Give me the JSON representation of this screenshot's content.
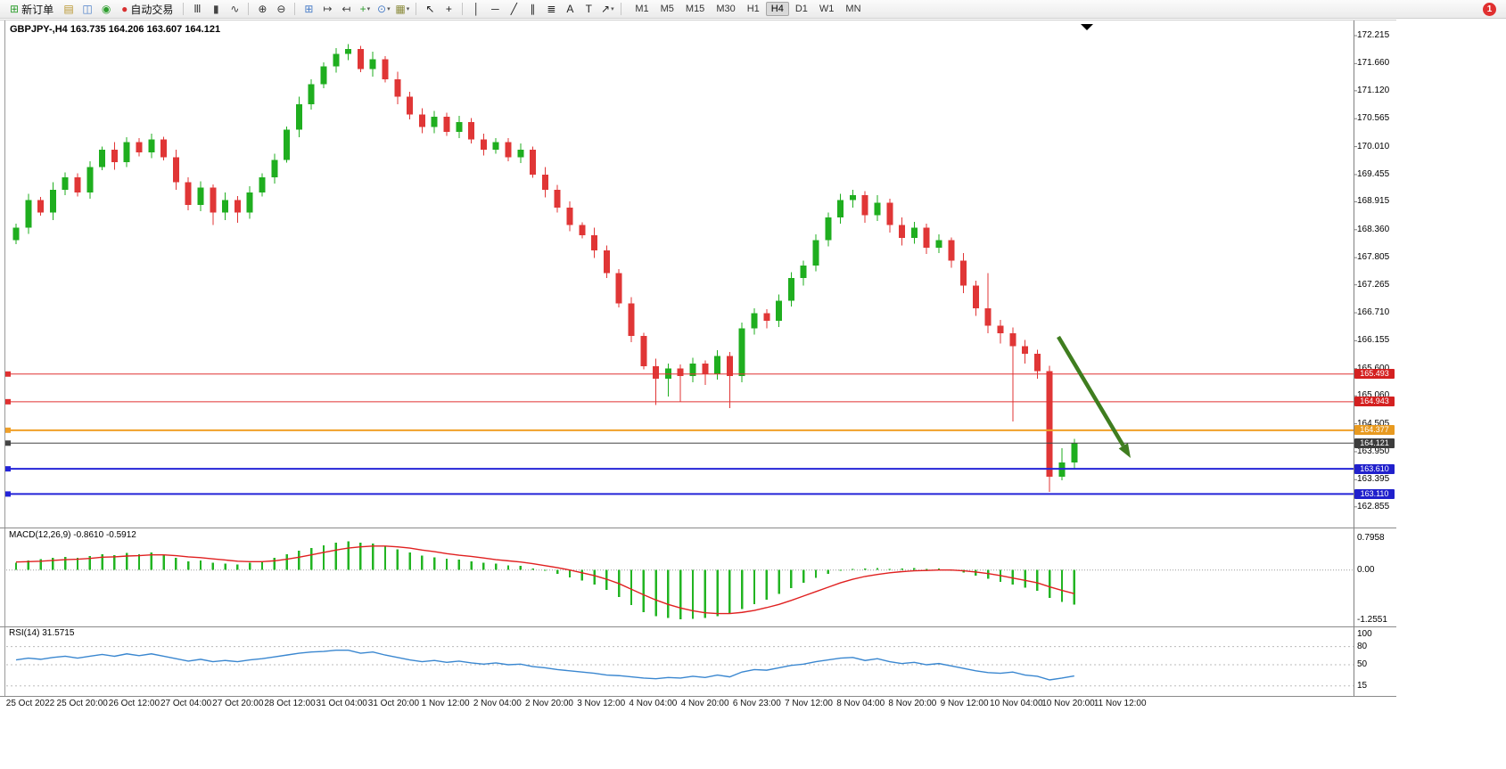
{
  "toolbar": {
    "items": [
      {
        "type": "button",
        "name": "new-order",
        "glyph": "⊞",
        "color": "#2e9e2e",
        "label": "新订单"
      },
      {
        "type": "icon",
        "name": "chart-window",
        "glyph": "▤",
        "color": "#b8952d"
      },
      {
        "type": "icon",
        "name": "market-watch",
        "glyph": "◫",
        "color": "#4a7ec8"
      },
      {
        "type": "icon",
        "name": "strategy-navigator",
        "glyph": "◉",
        "color": "#2e9e2e"
      },
      {
        "type": "button",
        "name": "auto-trading",
        "glyph": "●",
        "color": "#d83030",
        "label": "自动交易"
      },
      {
        "type": "sep"
      },
      {
        "type": "icon",
        "name": "bar-chart",
        "glyph": "Ⅲ",
        "color": "#444444"
      },
      {
        "type": "icon",
        "name": "candlestick-chart",
        "glyph": "▮",
        "color": "#444444"
      },
      {
        "type": "icon",
        "name": "line-chart",
        "glyph": "∿",
        "color": "#444444"
      },
      {
        "type": "sep"
      },
      {
        "type": "icon",
        "name": "zoom-in",
        "glyph": "⊕",
        "color": "#333333"
      },
      {
        "type": "icon",
        "name": "zoom-out",
        "glyph": "⊖",
        "color": "#333333"
      },
      {
        "type": "sep"
      },
      {
        "type": "icon",
        "name": "tile-windows",
        "glyph": "⊞",
        "color": "#4a7ec8"
      },
      {
        "type": "icon",
        "name": "auto-scroll",
        "glyph": "↦",
        "color": "#444444"
      },
      {
        "type": "icon",
        "name": "chart-shift",
        "glyph": "↤",
        "color": "#444444"
      },
      {
        "type": "icon",
        "name": "indicators",
        "glyph": "+",
        "color": "#2e9e2e",
        "caret": true
      },
      {
        "type": "icon",
        "name": "periods",
        "glyph": "⊙",
        "color": "#4a7ec8",
        "caret": true
      },
      {
        "type": "icon",
        "name": "templates",
        "glyph": "▦",
        "color": "#8a8a3a",
        "caret": true
      },
      {
        "type": "sep"
      },
      {
        "type": "icon",
        "name": "cursor",
        "glyph": "↖",
        "color": "#222222"
      },
      {
        "type": "icon",
        "name": "crosshair",
        "glyph": "+",
        "color": "#222222"
      },
      {
        "type": "sep"
      },
      {
        "type": "icon",
        "name": "vertical-line",
        "glyph": "│",
        "color": "#222222"
      },
      {
        "type": "icon",
        "name": "horizontal-line",
        "glyph": "─",
        "color": "#222222"
      },
      {
        "type": "icon",
        "name": "trendline",
        "glyph": "╱",
        "color": "#222222"
      },
      {
        "type": "icon",
        "name": "equidistant-channel",
        "glyph": "∥",
        "color": "#222222"
      },
      {
        "type": "icon",
        "name": "fibonacci",
        "glyph": "≣",
        "color": "#222222"
      },
      {
        "type": "icon",
        "name": "text",
        "glyph": "A",
        "color": "#222222"
      },
      {
        "type": "icon",
        "name": "text-label",
        "glyph": "T",
        "color": "#222222"
      },
      {
        "type": "icon",
        "name": "arrows",
        "glyph": "↗",
        "color": "#222222",
        "caret": true
      },
      {
        "type": "sep"
      }
    ],
    "timeframes": [
      {
        "label": "M1",
        "active": false
      },
      {
        "label": "M5",
        "active": false
      },
      {
        "label": "M15",
        "active": false
      },
      {
        "label": "M30",
        "active": false
      },
      {
        "label": "H1",
        "active": false
      },
      {
        "label": "H4",
        "active": true
      },
      {
        "label": "D1",
        "active": false
      },
      {
        "label": "W1",
        "active": false
      },
      {
        "label": "MN",
        "active": false
      }
    ],
    "notification_count": "1"
  },
  "chart": {
    "title": "GBPJPY-,H4 163.735 164.206 163.607 164.121"
  },
  "indicator_labels": {
    "macd": "MACD(12,26,9) -0.8610 -0.5912",
    "rsi": "RSI(14) 31.5715"
  },
  "axes": {
    "price_labels": [
      "172.215",
      "171.660",
      "171.120",
      "170.565",
      "170.010",
      "169.455",
      "168.915",
      "168.360",
      "167.805",
      "167.265",
      "166.710",
      "166.155",
      "165.600",
      "165.060",
      "164.505",
      "163.950",
      "163.395",
      "162.855"
    ],
    "macd_labels": [
      "0.7958",
      "0.00",
      "-1.2551"
    ],
    "rsi_labels": [
      "100",
      "80",
      "50",
      "15"
    ],
    "time_labels": [
      "25 Oct 2022",
      "25 Oct 20:00",
      "26 Oct 12:00",
      "27 Oct 04:00",
      "27 Oct 20:00",
      "28 Oct 12:00",
      "31 Oct 04:00",
      "31 Oct 20:00",
      "1 Nov 12:00",
      "2 Nov 04:00",
      "2 Nov 20:00",
      "3 Nov 12:00",
      "4 Nov 04:00",
      "4 Nov 20:00",
      "6 Nov 23:00",
      "7 Nov 12:00",
      "8 Nov 04:00",
      "8 Nov 20:00",
      "9 Nov 12:00",
      "10 Nov 04:00",
      "10 Nov 20:00",
      "11 Nov 12:00"
    ]
  },
  "levels": [
    {
      "value": "165.493",
      "price": 165.493,
      "color": "#e03030",
      "tag_bg": "#d42020",
      "width": 1
    },
    {
      "value": "164.943",
      "price": 164.943,
      "color": "#e03030",
      "tag_bg": "#d42020",
      "width": 1
    },
    {
      "value": "164.377",
      "price": 164.377,
      "color": "#f0a028",
      "tag_bg": "#e89a20",
      "width": 2
    },
    {
      "value": "164.121",
      "price": 164.121,
      "color": "#444444",
      "tag_bg": "#3c3c3c",
      "width": 1
    },
    {
      "value": "163.610",
      "price": 163.61,
      "color": "#2424d8",
      "tag_bg": "#2020cc",
      "width": 2
    },
    {
      "value": "163.110",
      "price": 163.11,
      "color": "#2424d8",
      "tag_bg": "#2020cc",
      "width": 2
    }
  ],
  "annotations": {
    "trend_arrow": {
      "from": [
        1187,
        378
      ],
      "to": [
        1268,
        514
      ],
      "color": "#3f7d1f",
      "width": 4.5
    }
  },
  "colors": {
    "bull": "#1fae1f",
    "bear": "#e03636",
    "macd_hist": "#22b422",
    "macd_signal": "#e02020",
    "rsi_line": "#3a87d0",
    "grid": "#8a8a8a"
  },
  "chart_data": [
    {
      "type": "candlestick",
      "title": "GBPJPY-,H4",
      "symbol": "GBPJPY-",
      "timeframe": "H4",
      "current_ohlc": {
        "open": 163.735,
        "high": 164.206,
        "low": 163.607,
        "close": 164.121
      },
      "ylim": [
        162.855,
        172.215
      ],
      "levels": [
        165.493,
        164.943,
        164.377,
        164.121,
        163.61,
        163.11
      ],
      "candles": [
        [
          168.15,
          168.48,
          168.07,
          168.4
        ],
        [
          168.4,
          169.07,
          168.28,
          168.95
        ],
        [
          168.95,
          169.01,
          168.64,
          168.7
        ],
        [
          168.7,
          169.3,
          168.55,
          169.15
        ],
        [
          169.15,
          169.5,
          169.05,
          169.4
        ],
        [
          169.4,
          169.48,
          169.02,
          169.1
        ],
        [
          169.1,
          169.72,
          168.98,
          169.6
        ],
        [
          169.6,
          170.01,
          169.54,
          169.95
        ],
        [
          169.95,
          170.1,
          169.55,
          169.7
        ],
        [
          169.7,
          170.2,
          169.6,
          170.1
        ],
        [
          170.1,
          170.18,
          169.82,
          169.9
        ],
        [
          169.9,
          170.27,
          169.78,
          170.15
        ],
        [
          170.15,
          170.21,
          169.74,
          169.8
        ],
        [
          169.8,
          169.95,
          169.15,
          169.3
        ],
        [
          169.3,
          169.4,
          168.75,
          168.85
        ],
        [
          168.85,
          169.32,
          168.73,
          169.2
        ],
        [
          169.2,
          169.26,
          168.45,
          168.7
        ],
        [
          168.7,
          169.1,
          168.55,
          168.95
        ],
        [
          168.95,
          169.03,
          168.5,
          168.7
        ],
        [
          168.7,
          169.22,
          168.58,
          169.1
        ],
        [
          169.1,
          169.48,
          169.02,
          169.4
        ],
        [
          169.4,
          169.87,
          169.28,
          169.75
        ],
        [
          169.75,
          170.41,
          169.69,
          170.35
        ],
        [
          170.35,
          171.0,
          170.2,
          170.85
        ],
        [
          170.85,
          171.35,
          170.75,
          171.25
        ],
        [
          171.25,
          171.68,
          171.17,
          171.6
        ],
        [
          171.6,
          171.97,
          171.48,
          171.85
        ],
        [
          171.85,
          172.05,
          171.73,
          171.95
        ],
        [
          171.95,
          172.01,
          171.49,
          171.55
        ],
        [
          171.55,
          171.9,
          171.4,
          171.75
        ],
        [
          171.75,
          171.81,
          171.29,
          171.35
        ],
        [
          171.35,
          171.5,
          170.85,
          171.0
        ],
        [
          171.0,
          171.1,
          170.55,
          170.65
        ],
        [
          170.65,
          170.77,
          170.28,
          170.4
        ],
        [
          170.4,
          170.72,
          170.28,
          170.6
        ],
        [
          170.6,
          170.68,
          170.22,
          170.3
        ],
        [
          170.3,
          170.62,
          170.18,
          170.5
        ],
        [
          170.5,
          170.58,
          170.07,
          170.15
        ],
        [
          170.15,
          170.27,
          169.83,
          169.95
        ],
        [
          169.95,
          170.18,
          169.87,
          170.1
        ],
        [
          170.1,
          170.18,
          169.72,
          169.8
        ],
        [
          169.8,
          170.07,
          169.68,
          169.95
        ],
        [
          169.95,
          170.01,
          169.39,
          169.45
        ],
        [
          169.45,
          169.6,
          169.0,
          169.15
        ],
        [
          169.15,
          169.25,
          168.7,
          168.8
        ],
        [
          168.8,
          168.92,
          168.33,
          168.45
        ],
        [
          168.45,
          168.51,
          168.19,
          168.25
        ],
        [
          168.25,
          168.4,
          167.8,
          167.95
        ],
        [
          167.95,
          168.05,
          167.4,
          167.5
        ],
        [
          167.5,
          167.58,
          166.82,
          166.9
        ],
        [
          166.9,
          167.02,
          166.13,
          166.25
        ],
        [
          166.25,
          166.31,
          165.59,
          165.65
        ],
        [
          165.65,
          165.8,
          164.88,
          165.4
        ],
        [
          165.4,
          165.7,
          165.05,
          165.6
        ],
        [
          165.6,
          165.68,
          164.95,
          165.45
        ],
        [
          165.45,
          165.82,
          165.33,
          165.7
        ],
        [
          165.7,
          165.76,
          165.28,
          165.5
        ],
        [
          165.5,
          165.97,
          165.38,
          165.85
        ],
        [
          165.85,
          165.93,
          164.82,
          165.45
        ],
        [
          165.45,
          166.52,
          165.33,
          166.4
        ],
        [
          166.4,
          166.8,
          166.28,
          166.7
        ],
        [
          166.7,
          166.78,
          166.4,
          166.55
        ],
        [
          166.55,
          167.07,
          166.43,
          166.95
        ],
        [
          166.95,
          167.52,
          166.83,
          167.4
        ],
        [
          167.4,
          167.75,
          167.25,
          167.65
        ],
        [
          167.65,
          168.27,
          167.53,
          168.15
        ],
        [
          168.15,
          168.7,
          168.03,
          168.6
        ],
        [
          168.6,
          169.07,
          168.48,
          168.95
        ],
        [
          168.95,
          169.15,
          168.8,
          169.05
        ],
        [
          169.05,
          169.13,
          168.5,
          168.65
        ],
        [
          168.65,
          169.05,
          168.53,
          168.9
        ],
        [
          168.9,
          168.98,
          168.3,
          168.45
        ],
        [
          168.45,
          168.6,
          168.05,
          168.2
        ],
        [
          168.2,
          168.52,
          168.08,
          168.4
        ],
        [
          168.4,
          168.48,
          167.88,
          168.0
        ],
        [
          168.0,
          168.27,
          167.9,
          168.15
        ],
        [
          168.15,
          168.21,
          167.6,
          167.75
        ],
        [
          167.75,
          167.9,
          167.1,
          167.25
        ],
        [
          167.25,
          167.35,
          166.65,
          166.8
        ],
        [
          166.8,
          167.5,
          166.3,
          166.45
        ],
        [
          166.45,
          166.57,
          166.1,
          166.3
        ],
        [
          166.3,
          166.42,
          164.55,
          166.05
        ],
        [
          166.05,
          166.17,
          165.7,
          165.9
        ],
        [
          165.9,
          165.98,
          165.4,
          165.55
        ],
        [
          165.55,
          165.66,
          163.15,
          163.45
        ],
        [
          163.45,
          164.02,
          163.38,
          163.74
        ],
        [
          163.735,
          164.206,
          163.607,
          164.121
        ]
      ]
    },
    {
      "type": "bar",
      "name": "MACD(12,26,9)",
      "current_macd": -0.861,
      "current_signal": -0.5912,
      "ylim": [
        -1.2551,
        0.7958
      ],
      "histogram": [
        0.18,
        0.24,
        0.27,
        0.3,
        0.33,
        0.3,
        0.35,
        0.4,
        0.37,
        0.43,
        0.4,
        0.44,
        0.38,
        0.3,
        0.22,
        0.24,
        0.18,
        0.16,
        0.14,
        0.18,
        0.22,
        0.3,
        0.4,
        0.48,
        0.55,
        0.62,
        0.68,
        0.72,
        0.68,
        0.66,
        0.6,
        0.52,
        0.44,
        0.36,
        0.32,
        0.28,
        0.26,
        0.22,
        0.18,
        0.16,
        0.12,
        0.1,
        0.04,
        -0.02,
        -0.1,
        -0.18,
        -0.26,
        -0.36,
        -0.5,
        -0.68,
        -0.88,
        -1.05,
        -1.15,
        -1.2,
        -1.23,
        -1.22,
        -1.2,
        -1.15,
        -1.1,
        -0.98,
        -0.85,
        -0.74,
        -0.6,
        -0.45,
        -0.32,
        -0.2,
        -0.1,
        -0.02,
        0.03,
        0.04,
        0.05,
        0.03,
        0.04,
        0.05,
        0.03,
        0.04,
        0.0,
        -0.06,
        -0.14,
        -0.22,
        -0.3,
        -0.36,
        -0.44,
        -0.52,
        -0.7,
        -0.8,
        -0.861
      ],
      "signal": [
        0.2,
        0.21,
        0.22,
        0.24,
        0.26,
        0.27,
        0.29,
        0.32,
        0.33,
        0.35,
        0.36,
        0.38,
        0.38,
        0.36,
        0.33,
        0.31,
        0.28,
        0.25,
        0.22,
        0.21,
        0.21,
        0.23,
        0.27,
        0.32,
        0.38,
        0.44,
        0.5,
        0.55,
        0.58,
        0.6,
        0.6,
        0.58,
        0.55,
        0.5,
        0.46,
        0.41,
        0.37,
        0.34,
        0.3,
        0.26,
        0.23,
        0.2,
        0.16,
        0.11,
        0.06,
        0.0,
        -0.07,
        -0.14,
        -0.23,
        -0.34,
        -0.48,
        -0.62,
        -0.75,
        -0.86,
        -0.95,
        -1.02,
        -1.07,
        -1.09,
        -1.09,
        -1.06,
        -1.01,
        -0.94,
        -0.86,
        -0.76,
        -0.65,
        -0.54,
        -0.43,
        -0.32,
        -0.23,
        -0.16,
        -0.11,
        -0.07,
        -0.04,
        -0.02,
        -0.01,
        0.0,
        0.0,
        -0.02,
        -0.05,
        -0.09,
        -0.14,
        -0.2,
        -0.26,
        -0.32,
        -0.42,
        -0.51,
        -0.5912
      ]
    },
    {
      "type": "line",
      "name": "RSI(14)",
      "current": 31.5715,
      "ylim": [
        0,
        100
      ],
      "level_lines": [
        80,
        50,
        15
      ],
      "values": [
        58,
        61,
        59,
        62,
        64,
        61,
        64,
        67,
        64,
        68,
        65,
        68,
        64,
        60,
        56,
        59,
        55,
        57,
        55,
        58,
        60,
        63,
        66,
        69,
        71,
        72,
        74,
        74,
        69,
        71,
        66,
        62,
        58,
        55,
        57,
        54,
        56,
        53,
        51,
        53,
        50,
        51,
        47,
        45,
        42,
        40,
        38,
        36,
        33,
        32,
        30,
        28,
        27,
        29,
        28,
        31,
        29,
        33,
        30,
        38,
        42,
        41,
        45,
        49,
        51,
        55,
        58,
        61,
        62,
        57,
        60,
        55,
        52,
        54,
        50,
        52,
        48,
        44,
        40,
        37,
        36,
        38,
        33,
        31,
        25,
        28,
        31.57
      ]
    }
  ]
}
